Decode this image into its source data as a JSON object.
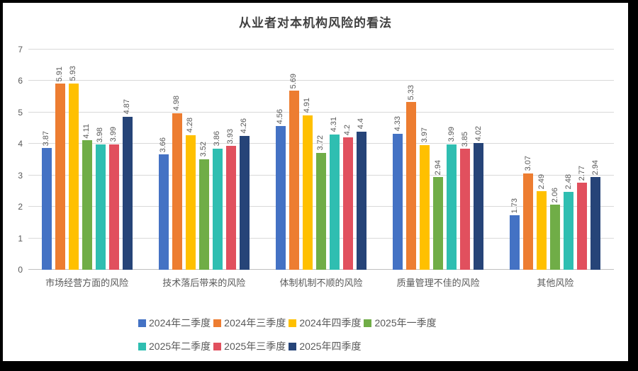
{
  "chart_data": {
    "type": "bar",
    "title": "从业者对本机构风险的看法",
    "categories": [
      "市场经营方面的风险",
      "技术落后带来的风险",
      "体制机制不顺的风险",
      "质量管理不佳的风险",
      "其他风险"
    ],
    "series": [
      {
        "name": "2024年二季度",
        "color": "#4472C4",
        "values": [
          3.87,
          3.66,
          4.56,
          4.33,
          1.73
        ]
      },
      {
        "name": "2024年三季度",
        "color": "#ED7D31",
        "values": [
          5.91,
          4.98,
          5.69,
          5.33,
          3.07
        ]
      },
      {
        "name": "2024年四季度",
        "color": "#FFC000",
        "values": [
          5.93,
          4.28,
          4.91,
          3.97,
          2.49
        ]
      },
      {
        "name": "2025年一季度",
        "color": "#70AD47",
        "values": [
          4.11,
          3.52,
          3.72,
          2.94,
          2.06
        ]
      },
      {
        "name": "2025年二季度",
        "color": "#2FBEB1",
        "values": [
          3.98,
          3.86,
          4.31,
          3.99,
          2.48
        ]
      },
      {
        "name": "2025年三季度",
        "color": "#E1505E",
        "values": [
          3.99,
          3.93,
          4.2,
          3.85,
          2.77
        ]
      },
      {
        "name": "2025年四季度",
        "color": "#264478",
        "values": [
          4.87,
          4.26,
          4.4,
          4.02,
          2.94
        ]
      }
    ],
    "ylim": [
      0,
      7
    ],
    "yticks": [
      0,
      1,
      2,
      3,
      4,
      5,
      6,
      7
    ],
    "grid": true,
    "data_labels": true,
    "legend_position": "bottom",
    "colors": {
      "grid": "#d9d9d9",
      "axis_line": "#bfbfbf",
      "title_text": "#404040",
      "label_text": "#595959"
    }
  }
}
